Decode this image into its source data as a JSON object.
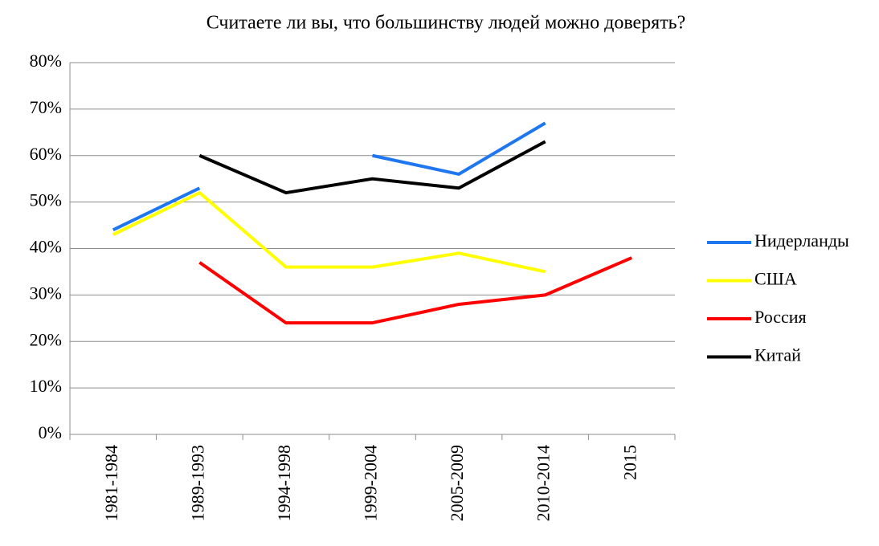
{
  "chart_data": {
    "type": "line",
    "title": "Считаете ли вы, что большинству людей можно доверять?",
    "categories": [
      "1981-1984",
      "1989-1993",
      "1994-1998",
      "1999-2004",
      "2005-2009",
      "2010-2014",
      "2015"
    ],
    "series": [
      {
        "name": "Нидерланды",
        "color": "#1f77f0",
        "values": [
          44,
          53,
          null,
          60,
          56,
          67,
          null
        ]
      },
      {
        "name": "США",
        "color": "#ffff00",
        "values": [
          43,
          52,
          36,
          36,
          39,
          35,
          null
        ]
      },
      {
        "name": "Россия",
        "color": "#ff0000",
        "values": [
          null,
          37,
          24,
          24,
          28,
          30,
          38
        ]
      },
      {
        "name": "Китай",
        "color": "#000000",
        "values": [
          null,
          60,
          52,
          55,
          53,
          63,
          null
        ]
      }
    ],
    "ylim": [
      0,
      80
    ],
    "yticks": [
      {
        "value": 0,
        "label": "0%"
      },
      {
        "value": 10,
        "label": "10%"
      },
      {
        "value": 20,
        "label": "20%"
      },
      {
        "value": 30,
        "label": "30%"
      },
      {
        "value": 40,
        "label": "40%"
      },
      {
        "value": 50,
        "label": "50%"
      },
      {
        "value": 60,
        "label": "60%"
      },
      {
        "value": 70,
        "label": "70%"
      },
      {
        "value": 80,
        "label": "80%"
      }
    ],
    "grid": true,
    "legend": "right"
  }
}
